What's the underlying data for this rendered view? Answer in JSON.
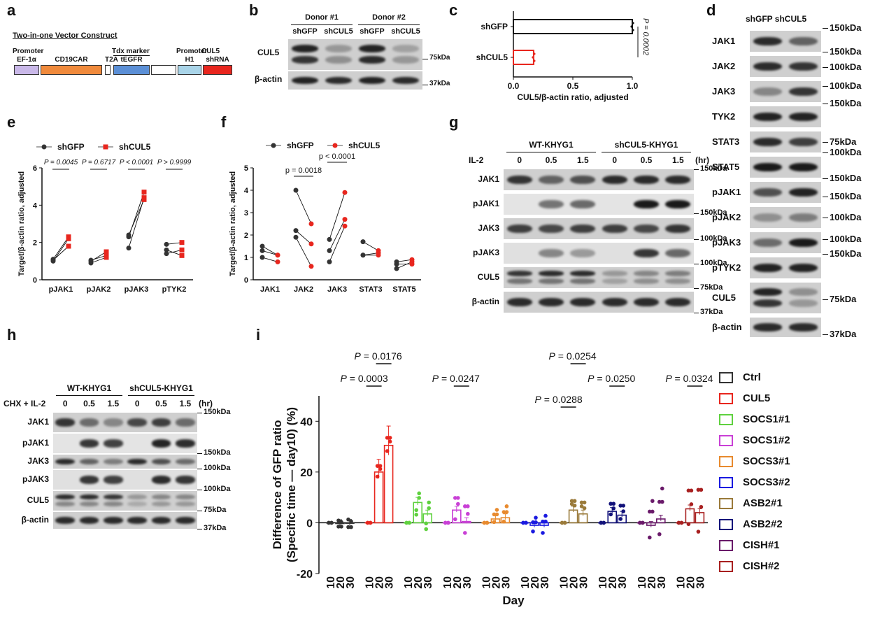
{
  "panel_a": {
    "letter": "a",
    "title": "Two-in-one Vector Construct",
    "segments": [
      {
        "top": "Promoter",
        "bottom": "EF-1α",
        "color": "#c9b8e8"
      },
      {
        "top": "",
        "bottom": "CD19CAR",
        "color": "#f08a3c"
      },
      {
        "top": "",
        "bottom": "T2A",
        "color": "#ffffff"
      },
      {
        "top": "Tdx marker",
        "bottom": "tEGFR",
        "color": "#5b8fd6"
      },
      {
        "top": "",
        "bottom": "",
        "color": "#ffffff"
      },
      {
        "top": "Promoter",
        "bottom": "H1",
        "color": "#a9d4e8"
      },
      {
        "top": "CUL5",
        "bottom": "shRNA",
        "color": "#e8261e"
      }
    ]
  },
  "panel_b": {
    "letter": "b",
    "donors": [
      "Donor #1",
      "Donor #2"
    ],
    "lanes": [
      "shGFP",
      "shCUL5",
      "shGFP",
      "shCUL5"
    ],
    "rows": [
      "CUL5",
      "β-actin"
    ],
    "markers": [
      "75kDa",
      "37kDa"
    ]
  },
  "panel_c": {
    "letter": "c",
    "chart_data": {
      "type": "bar",
      "orientation": "horizontal",
      "categories": [
        "shGFP",
        "shCUL5"
      ],
      "values": [
        1.0,
        0.17
      ],
      "colors": [
        "#111111",
        "#e8261e"
      ],
      "xlabel": "CUL5/β-actin ratio, adjusted",
      "xlim": [
        0,
        1.0
      ],
      "xticks": [
        "0.0",
        "0.5",
        "1.0"
      ],
      "pvalue": "P = 0.0002"
    }
  },
  "panel_d": {
    "letter": "d",
    "lanes": [
      "shGFP",
      "shCUL5"
    ],
    "rows": [
      "JAK1",
      "JAK2",
      "JAK3",
      "TYK2",
      "STAT3",
      "STAT5",
      "pJAK1",
      "pJAK2",
      "pJAK3",
      "pTYK2",
      "CUL5",
      "β-actin"
    ],
    "markers": [
      "150kDa",
      "150kDa",
      "100kDa",
      "100kDa",
      "150kDa",
      "75kDa",
      "100kDa",
      "150kDa",
      "150kDa",
      "100kDa",
      "100kDa",
      "150kDa",
      "75kDa",
      "37kDa"
    ]
  },
  "panel_e": {
    "letter": "e",
    "chart_data": {
      "type": "scatter",
      "categories": [
        "pJAK1",
        "pJAK2",
        "pJAK3",
        "pTYK2"
      ],
      "series": [
        {
          "name": "shGFP",
          "color": "#333333",
          "values": [
            [
              1.0,
              1.1,
              1.05
            ],
            [
              0.9,
              1.0,
              1.05
            ],
            [
              1.7,
              2.3,
              2.4
            ],
            [
              1.6,
              1.9,
              1.4
            ]
          ]
        },
        {
          "name": "shCUL5",
          "color": "#e8261e",
          "values": [
            [
              2.2,
              2.3,
              1.8
            ],
            [
              1.2,
              1.5,
              1.3
            ],
            [
              4.4,
              4.7,
              4.3
            ],
            [
              1.3,
              2.0,
              1.6
            ]
          ]
        }
      ],
      "ylabel": "Target/β-actin ratio, adjusted",
      "ylim": [
        0,
        6
      ],
      "yticks": [
        "0",
        "2",
        "4",
        "6"
      ],
      "pvalues": [
        "P = 0.0045",
        "P = 0.6717",
        "P < 0.0001",
        "P > 0.9999"
      ]
    }
  },
  "panel_f": {
    "letter": "f",
    "chart_data": {
      "type": "scatter",
      "categories": [
        "JAK1",
        "JAK2",
        "JAK3",
        "STAT3",
        "STAT5"
      ],
      "series": [
        {
          "name": "shGFP",
          "color": "#333333",
          "values": [
            [
              1.5,
              1.3,
              1.0
            ],
            [
              4.0,
              2.2,
              1.9
            ],
            [
              1.8,
              1.3,
              0.8
            ],
            [
              1.7,
              1.1,
              1.1
            ],
            [
              0.8,
              0.7,
              0.5
            ]
          ]
        },
        {
          "name": "shCUL5",
          "color": "#e8261e",
          "values": [
            [
              1.1,
              1.1,
              0.8
            ],
            [
              2.5,
              1.6,
              0.6
            ],
            [
              3.9,
              2.7,
              2.4
            ],
            [
              1.3,
              1.2,
              1.1
            ],
            [
              0.9,
              0.7,
              0.8
            ]
          ]
        }
      ],
      "ylabel": "Target/β-actin ratio, adjusted",
      "ylim": [
        0,
        5
      ],
      "yticks": [
        "0",
        "1",
        "2",
        "3",
        "4",
        "5"
      ],
      "pvalues": [
        "p = 0.0018",
        "p < 0.0001"
      ]
    }
  },
  "panel_g": {
    "letter": "g",
    "groups": [
      "WT-KHYG1",
      "shCUL5-KHYG1"
    ],
    "treatment": "IL-2",
    "times": [
      "0",
      "0.5",
      "1.5",
      "0",
      "0.5",
      "1.5"
    ],
    "unit": "(hr)",
    "rows": [
      "JAK1",
      "pJAK1",
      "JAK3",
      "pJAK3",
      "CUL5",
      "β-actin"
    ],
    "markers": [
      "150kDa",
      "150kDa",
      "100kDa",
      "100kDa",
      "75kDa",
      "37kDa"
    ]
  },
  "panel_h": {
    "letter": "h",
    "groups": [
      "WT-KHYG1",
      "shCUL5-KHYG1"
    ],
    "treatment": "CHX + IL-2",
    "times": [
      "0",
      "0.5",
      "1.5",
      "0",
      "0.5",
      "1.5"
    ],
    "unit": "(hr)",
    "rows": [
      "JAK1",
      "pJAK1",
      "JAK3",
      "pJAK3",
      "CUL5",
      "β-actin"
    ],
    "markers": [
      "150kDa",
      "150kDa",
      "100kDa",
      "100kDa",
      "75kDa",
      "37kDa"
    ]
  },
  "panel_i": {
    "letter": "i",
    "chart_data": {
      "type": "bar",
      "groups": [
        "Ctrl",
        "CUL5",
        "SOCS1#1",
        "SOCS1#2",
        "SOCS3#1",
        "SOCS3#2",
        "ASB2#1",
        "ASB2#2",
        "CISH#1",
        "CISH#2"
      ],
      "colors": [
        "#333333",
        "#e8261e",
        "#5fd13f",
        "#c940d6",
        "#e88a2e",
        "#1a1ae0",
        "#9a7a3a",
        "#12127a",
        "#6a1a6a",
        "#a82020"
      ],
      "x_per_group": [
        "10",
        "20",
        "30"
      ],
      "series": [
        {
          "name": "Ctrl",
          "values": [
            0,
            -0.3,
            -0.2
          ]
        },
        {
          "name": "CUL5",
          "values": [
            0,
            20,
            30.5
          ]
        },
        {
          "name": "SOCS1#1",
          "values": [
            0,
            8,
            3.5
          ]
        },
        {
          "name": "SOCS1#2",
          "values": [
            0,
            5,
            0.5
          ]
        },
        {
          "name": "SOCS3#1",
          "values": [
            0,
            1.5,
            2
          ]
        },
        {
          "name": "SOCS3#2",
          "values": [
            0,
            -1,
            -1
          ]
        },
        {
          "name": "ASB2#1",
          "values": [
            0,
            5,
            3.5
          ]
        },
        {
          "name": "ASB2#2",
          "values": [
            0,
            4.5,
            3
          ]
        },
        {
          "name": "CISH#1",
          "values": [
            0,
            -1,
            1.5
          ]
        },
        {
          "name": "CISH#2",
          "values": [
            0,
            5.5,
            4
          ]
        }
      ],
      "ylabel": "Difference of GFP ratio\n(Specific time — day10) (%)",
      "xlabel": "Day",
      "ylim": [
        -20,
        50
      ],
      "yticks": [
        "-20",
        "0",
        "20",
        "40"
      ],
      "pvalues": [
        "P = 0.0176",
        "P = 0.0003",
        "P = 0.0247",
        "P = 0.0254",
        "P = 0.0250",
        "P = 0.0288",
        "P = 0.0324"
      ],
      "legend": [
        "Ctrl",
        "CUL5",
        "SOCS1#1",
        "SOCS1#2",
        "SOCS3#1",
        "SOCS3#2",
        "ASB2#1",
        "ASB2#2",
        "CISH#1",
        "CISH#2"
      ]
    }
  }
}
